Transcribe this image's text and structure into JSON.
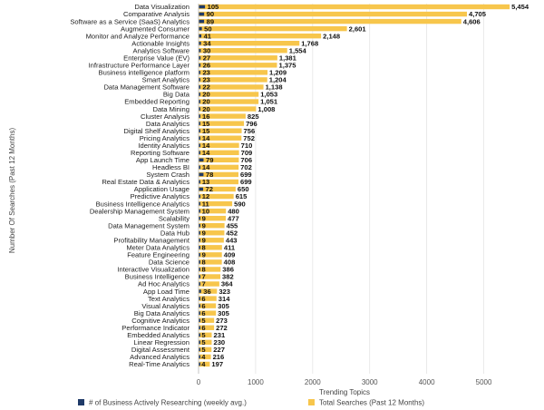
{
  "chart_data": {
    "type": "bar",
    "orientation": "horizontal",
    "xlabel": "Trending Topics",
    "ylabel": "Number Of Searches (Past 12 Months)",
    "xlim": [
      0,
      5500
    ],
    "xticks": [
      0,
      1000,
      2000,
      3000,
      4000,
      5000
    ],
    "grid": true,
    "legend_position": "bottom",
    "categories": [
      "Data Visualization",
      "Comparative Analysis",
      "Software as a Service (SaaS) Analytics",
      "Augmented Consumer",
      "Monitor and Analyze Performance",
      "Actionable Insights",
      "Analytics Software",
      "Enterprise Value (EV)",
      "Infrastructure Performance Layer",
      "Business intelligence platform",
      "Smart Analytics",
      "Data Management Software",
      "Big Data",
      "Embedded Reporting",
      "Data Mining",
      "Cluster Analysis",
      "Data Analytics",
      "Digital Shelf Analytics",
      "Pricing Analytics",
      "Identity Analytics",
      "Reporting Software",
      "App Launch Time",
      "Headless BI",
      "System Crash",
      "Real Estate Data & Analytics",
      "Application Usage",
      "Predictive Analytics",
      "Business Intelligence Analytics",
      "Dealership Management System",
      "Scalability",
      "Data Management System",
      "Data Hub",
      "Profitability Management",
      "Meter Data Analytics",
      "Feature Engineering",
      "Data Science",
      "Interactive Visualization",
      "Business Intelligence",
      "Ad Hoc Analytics",
      "App Load Time",
      "Text Analytics",
      "Visual Analytics",
      "Big Data Analytics",
      "Cognitive Analytics",
      "Performance Indicator",
      "Embedded Analytics",
      "Linear Regression",
      "Digital Assessment",
      "Advanced Analytics",
      "Real-Time Analytics"
    ],
    "series": [
      {
        "name": "# of Business Actively Researching (weekly avg.)",
        "color": "#1f3a68",
        "values": [
          105,
          90,
          89,
          50,
          41,
          34,
          30,
          27,
          26,
          23,
          23,
          22,
          20,
          20,
          20,
          16,
          15,
          15,
          14,
          14,
          14,
          79,
          14,
          78,
          13,
          72,
          12,
          11,
          10,
          9,
          9,
          9,
          9,
          8,
          9,
          8,
          8,
          7,
          7,
          36,
          6,
          6,
          6,
          5,
          6,
          5,
          5,
          5,
          4,
          4
        ]
      },
      {
        "name": "Total Searches (Past 12 Months)",
        "color": "#f7c64c",
        "values": [
          5454,
          4705,
          4606,
          2601,
          2148,
          1768,
          1554,
          1381,
          1375,
          1209,
          1204,
          1138,
          1053,
          1051,
          1008,
          825,
          796,
          756,
          752,
          710,
          709,
          706,
          702,
          699,
          699,
          650,
          615,
          590,
          480,
          477,
          455,
          452,
          443,
          411,
          409,
          408,
          386,
          382,
          364,
          323,
          314,
          305,
          305,
          273,
          272,
          231,
          230,
          227,
          216,
          197
        ]
      }
    ]
  }
}
